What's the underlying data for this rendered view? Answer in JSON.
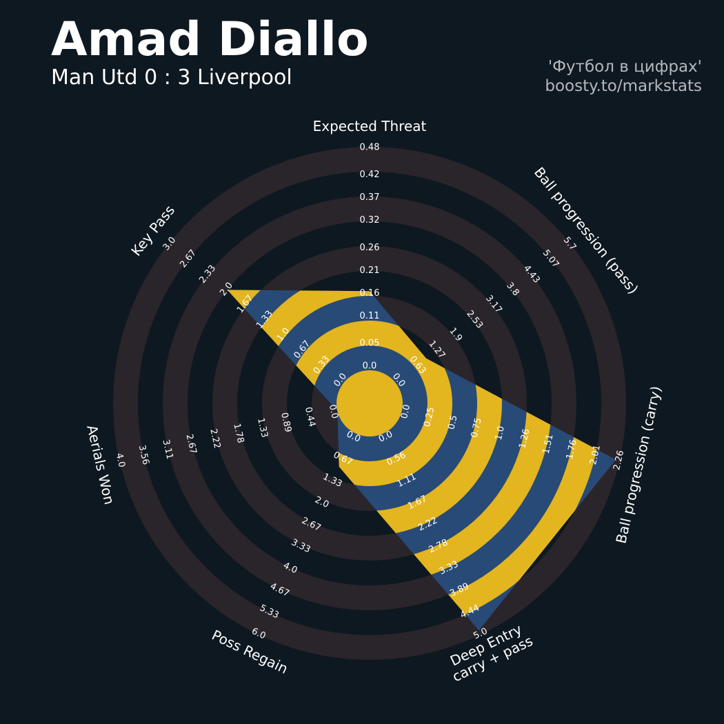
{
  "chart_data": {
    "type": "radar",
    "title": "Amad Diallo",
    "subtitle": "Man Utd 0 : 3 Liverpool",
    "credits": [
      "'Футбол в цифрах'",
      "boosty.to/markstats"
    ],
    "params": [
      [
        "Expected Threat"
      ],
      [
        "Ball progression (pass)"
      ],
      [
        "Ball progression (carry)"
      ],
      [
        "Deep Entry",
        "carry + pass"
      ],
      [
        "Poss Regain"
      ],
      [
        "Aerials Won"
      ],
      [
        "Key Pass"
      ]
    ],
    "lims": [
      [
        0,
        0.48
      ],
      [
        0,
        5.7
      ],
      [
        0,
        2.26
      ],
      [
        0,
        5
      ],
      [
        0,
        6
      ],
      [
        0,
        4
      ],
      [
        0,
        3
      ]
    ],
    "ticks": [
      [
        {
          "value": 0,
          "label": "0.0"
        },
        0.05,
        0.11,
        0.16,
        0.21,
        0.26,
        0.32,
        0.37,
        0.42,
        0.48
      ],
      [
        {
          "value": 0,
          "label": "0.0"
        },
        0.63,
        1.27,
        1.9,
        2.53,
        3.17,
        3.8,
        4.43,
        5.07,
        5.7
      ],
      [
        {
          "value": 0,
          "label": "0.0"
        },
        0.25,
        0.5,
        0.75,
        {
          "value": 1,
          "label": "1.0"
        },
        1.26,
        1.51,
        1.76,
        2.01,
        2.26
      ],
      [
        {
          "value": 0,
          "label": "0.0"
        },
        0.56,
        1.11,
        1.67,
        2.22,
        2.78,
        3.33,
        3.89,
        4.44,
        {
          "value": 5,
          "label": "5.0"
        }
      ],
      [
        {
          "value": 0,
          "label": "0.0"
        },
        0.67,
        1.33,
        {
          "value": 2,
          "label": "2.0"
        },
        2.67,
        3.33,
        {
          "value": 4,
          "label": "4.0"
        },
        4.67,
        5.33,
        {
          "value": 6,
          "label": "6.0"
        }
      ],
      [
        {
          "value": 0,
          "label": "0.0"
        },
        0.44,
        0.89,
        1.33,
        1.78,
        2.22,
        2.67,
        3.11,
        3.56,
        {
          "value": 4,
          "label": "4.0"
        }
      ],
      [
        {
          "value": 0,
          "label": "0.0"
        },
        0.33,
        0.67,
        {
          "value": 1,
          "label": "1.0"
        },
        1.33,
        1.67,
        {
          "value": 2,
          "label": "2.0"
        },
        2.33,
        2.67,
        {
          "value": 3,
          "label": "3.0"
        }
      ]
    ],
    "values": [
      0.17,
      1.0,
      2.22,
      4.9,
      1.0,
      0,
      2.0
    ],
    "color": "#284a77",
    "band_color": "#e3b51f",
    "ring_color": "#29252b"
  }
}
